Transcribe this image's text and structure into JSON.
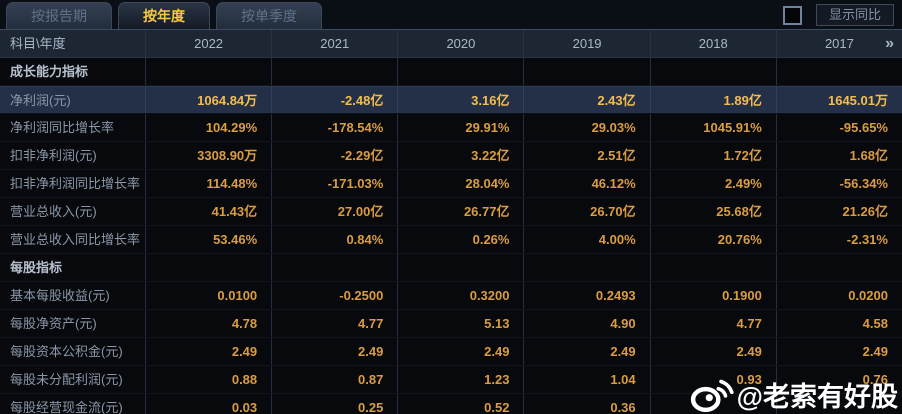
{
  "tabs": [
    {
      "label": "按报告期",
      "active": false
    },
    {
      "label": "按年度",
      "active": true
    },
    {
      "label": "按单季度",
      "active": false
    }
  ],
  "controls": {
    "show_yoy_label": "显示同比",
    "checkbox_checked": false
  },
  "table": {
    "corner_label": "科目\\年度",
    "years": [
      "2022",
      "2021",
      "2020",
      "2019",
      "2018",
      "2017"
    ],
    "more_icon": "»",
    "rows": [
      {
        "type": "section",
        "label": "成长能力指标",
        "values": [
          "",
          "",
          "",
          "",
          "",
          ""
        ]
      },
      {
        "type": "highlight",
        "label": "净利润(元)",
        "values": [
          "1064.84万",
          "-2.48亿",
          "3.16亿",
          "2.43亿",
          "1.89亿",
          "1645.01万"
        ]
      },
      {
        "type": "data",
        "label": "净利润同比增长率",
        "values": [
          "104.29%",
          "-178.54%",
          "29.91%",
          "29.03%",
          "1045.91%",
          "-95.65%"
        ]
      },
      {
        "type": "data",
        "label": "扣非净利润(元)",
        "values": [
          "3308.90万",
          "-2.29亿",
          "3.22亿",
          "2.51亿",
          "1.72亿",
          "1.68亿"
        ]
      },
      {
        "type": "data",
        "label": "扣非净利润同比增长率",
        "values": [
          "114.48%",
          "-171.03%",
          "28.04%",
          "46.12%",
          "2.49%",
          "-56.34%"
        ]
      },
      {
        "type": "data",
        "label": "营业总收入(元)",
        "values": [
          "41.43亿",
          "27.00亿",
          "26.77亿",
          "26.70亿",
          "25.68亿",
          "21.26亿"
        ]
      },
      {
        "type": "data",
        "label": "营业总收入同比增长率",
        "values": [
          "53.46%",
          "0.84%",
          "0.26%",
          "4.00%",
          "20.76%",
          "-2.31%"
        ]
      },
      {
        "type": "section",
        "label": "每股指标",
        "values": [
          "",
          "",
          "",
          "",
          "",
          ""
        ]
      },
      {
        "type": "data",
        "label": "基本每股收益(元)",
        "values": [
          "0.0100",
          "-0.2500",
          "0.3200",
          "0.2493",
          "0.1900",
          "0.0200"
        ]
      },
      {
        "type": "data",
        "label": "每股净资产(元)",
        "values": [
          "4.78",
          "4.77",
          "5.13",
          "4.90",
          "4.77",
          "4.58"
        ]
      },
      {
        "type": "data",
        "label": "每股资本公积金(元)",
        "values": [
          "2.49",
          "2.49",
          "2.49",
          "2.49",
          "2.49",
          "2.49"
        ]
      },
      {
        "type": "data",
        "label": "每股未分配利润(元)",
        "values": [
          "0.88",
          "0.87",
          "1.23",
          "1.04",
          "0.93",
          "0.76"
        ]
      },
      {
        "type": "data",
        "label": "每股经营现金流(元)",
        "values": [
          "0.03",
          "0.25",
          "0.52",
          "0.36",
          "",
          ""
        ]
      }
    ]
  },
  "watermark": {
    "text": "@老索有好股"
  },
  "colors": {
    "accent_gold": "#f7c843",
    "value_amber": "#db9c42",
    "highlight_value": "#f5bd4f",
    "highlight_row_bg": "#243047",
    "header_bg": "#1d2734",
    "page_bg": "#07090d"
  }
}
